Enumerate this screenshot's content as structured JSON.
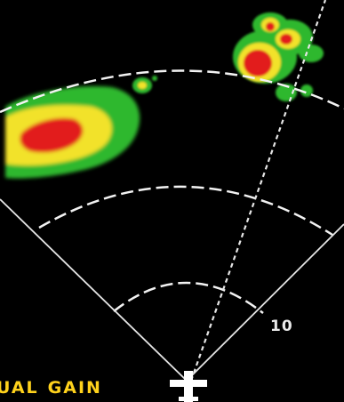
{
  "display": {
    "mode_prefix": "UAL",
    "mode_suffix": "GAIN",
    "range_marker": "10"
  },
  "colors": {
    "background": "#000000",
    "range_ring": "#f2f2f2",
    "azimuth_line": "#e6e6e6",
    "aircraft_symbol": "#ffffff",
    "mode_text": "#ffd21c",
    "range_text": "#eaeaea",
    "precip_light": "#2eb82e",
    "precip_moderate": "#f2e22a",
    "precip_heavy": "#e21b1b"
  },
  "icons": {
    "ownship": "aircraft-symbol-icon"
  }
}
